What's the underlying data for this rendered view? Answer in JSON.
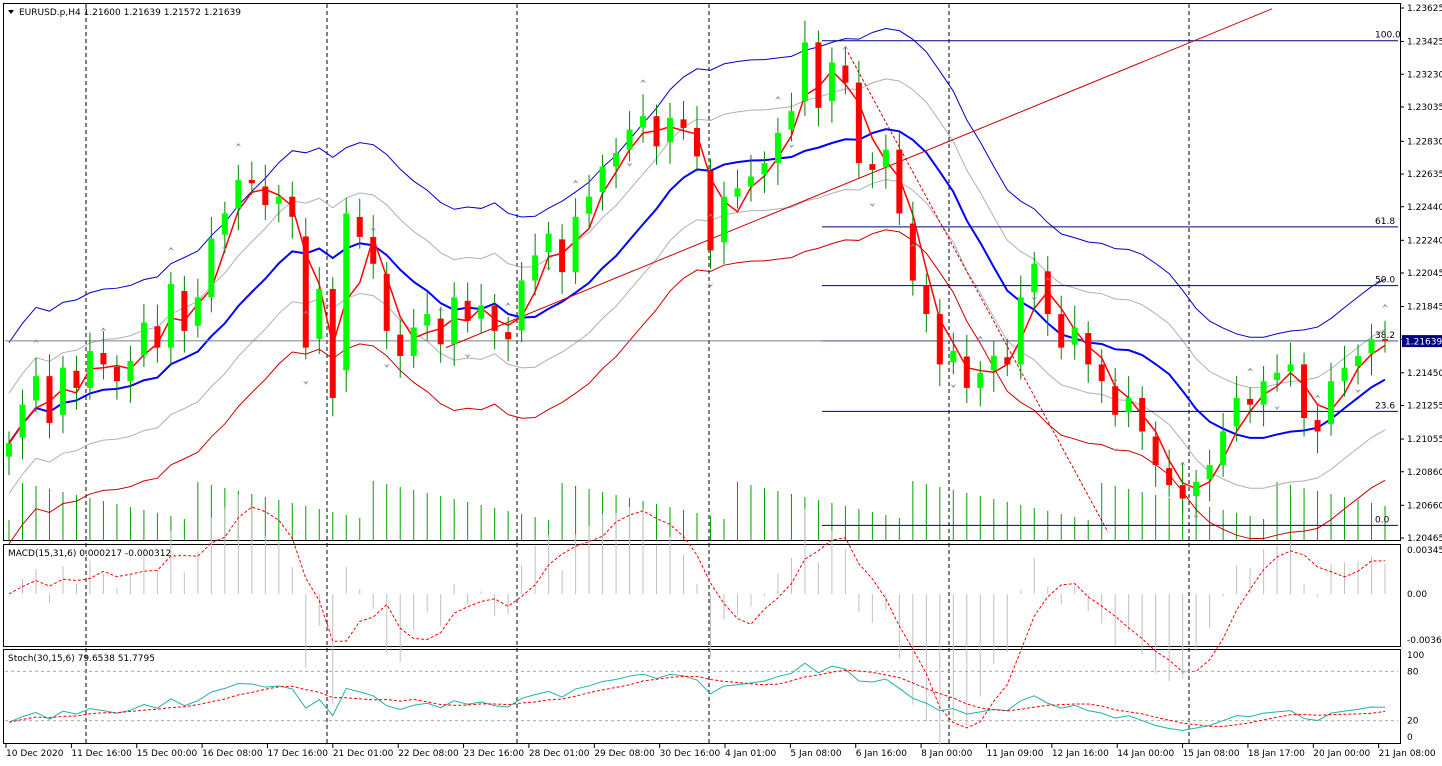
{
  "window": {
    "main_header": "EURUSD.p,H4  1.21600 1.21639 1.21572 1.21639",
    "macd_header": "MACD(15,31,6) 0.000217 -0.000312",
    "stoch_header": "Stoch(30,15,6) 79.6538 51.7795"
  },
  "colors": {
    "bull": "#00ff00",
    "bear": "#ff0000",
    "wick": "#008000",
    "bb_upper": "#0000cd",
    "bb_lower": "#cc0000",
    "ma_fast": "#ff0000",
    "ma_mid": "#0000ff",
    "envelope": "#b0b0b0",
    "volume": "#00a000",
    "trend": "#cc0000",
    "fib": "#000080",
    "macd_hist": "#c0c0c0",
    "macd_signal": "#ff0000",
    "stoch_main": "#20b2aa",
    "stoch_signal": "#ff0000",
    "grid": "#000000"
  },
  "chart_data": {
    "type": "candlestick",
    "symbol": "EURUSD.p",
    "timeframe": "H4",
    "current_price": "1.21639",
    "price_axis": {
      "range": [
        1.20465,
        1.23625
      ],
      "ticks": [
        "1.23625",
        "1.23425",
        "1.23230",
        "1.23035",
        "1.22830",
        "1.22635",
        "1.22440",
        "1.22240",
        "1.22045",
        "1.21845",
        "1.21650",
        "1.21450",
        "1.21255",
        "1.21055",
        "1.20860",
        "1.20660",
        "1.20465"
      ]
    },
    "time_axis": {
      "labels": [
        "10 Dec 2020",
        "11 Dec 16:00",
        "15 Dec 00:00",
        "16 Dec 08:00",
        "17 Dec 16:00",
        "21 Dec 01:00",
        "22 Dec 08:00",
        "23 Dec 16:00",
        "28 Dec 01:00",
        "29 Dec 08:00",
        "30 Dec 16:00",
        "4 Jan 01:00",
        "5 Jan 08:00",
        "6 Jan 16:00",
        "8 Jan 00:00",
        "11 Jan 09:00",
        "12 Jan 16:00",
        "14 Jan 00:00",
        "15 Jan 08:00",
        "18 Jan 17:00",
        "20 Jan 00:00",
        "21 Jan 08:00"
      ]
    },
    "fibonacci": {
      "levels": [
        {
          "label": "100.0",
          "price": 1.2343
        },
        {
          "label": "61.8",
          "price": 1.2232
        },
        {
          "label": "50.0",
          "price": 1.2197
        },
        {
          "label": "38.2",
          "price": 1.2164
        },
        {
          "label": "23.6",
          "price": 1.2122
        },
        {
          "label": "0.0",
          "price": 1.2054
        }
      ]
    },
    "series_closes": [
      1.2103,
      1.2126,
      1.2143,
      1.2115,
      1.2148,
      1.2136,
      1.2158,
      1.215,
      1.214,
      1.2152,
      1.2175,
      1.216,
      1.2198,
      1.217,
      1.219,
      1.2225,
      1.224,
      1.226,
      1.2258,
      1.2245,
      1.225,
      1.2238,
      1.216,
      1.2195,
      1.213,
      1.224,
      1.2226,
      1.221,
      1.217,
      1.2155,
      1.2172,
      1.218,
      1.2162,
      1.219,
      1.2176,
      1.2185,
      1.217,
      1.2165,
      1.22,
      1.2215,
      1.2228,
      1.2205,
      1.2238,
      1.225,
      1.2268,
      1.2276,
      1.229,
      1.2298,
      1.228,
      1.2297,
      1.2291,
      1.2274,
      1.2218,
      1.225,
      1.2255,
      1.2262,
      1.227,
      1.2288,
      1.2301,
      1.2342,
      1.2303,
      1.233,
      1.2318,
      1.227,
      1.2266,
      1.2278,
      1.224,
      1.22,
      1.218,
      1.215,
      1.2158,
      1.2136,
      1.2145,
      1.2155,
      1.215,
      1.219,
      1.221,
      1.218,
      1.216,
      1.2172,
      1.215,
      1.214,
      1.212,
      1.213,
      1.211,
      1.209,
      1.2078,
      1.207,
      1.208,
      1.209,
      1.211,
      1.213,
      1.2126,
      1.214,
      1.2145,
      1.215,
      1.2118,
      1.211,
      1.214,
      1.2148,
      1.2155,
      1.2165,
      1.2164
    ],
    "stoch_levels": [
      "100",
      "80",
      "20",
      "0"
    ],
    "macd_levels": [
      "0.003455",
      "0.00",
      "-0.00362"
    ]
  }
}
